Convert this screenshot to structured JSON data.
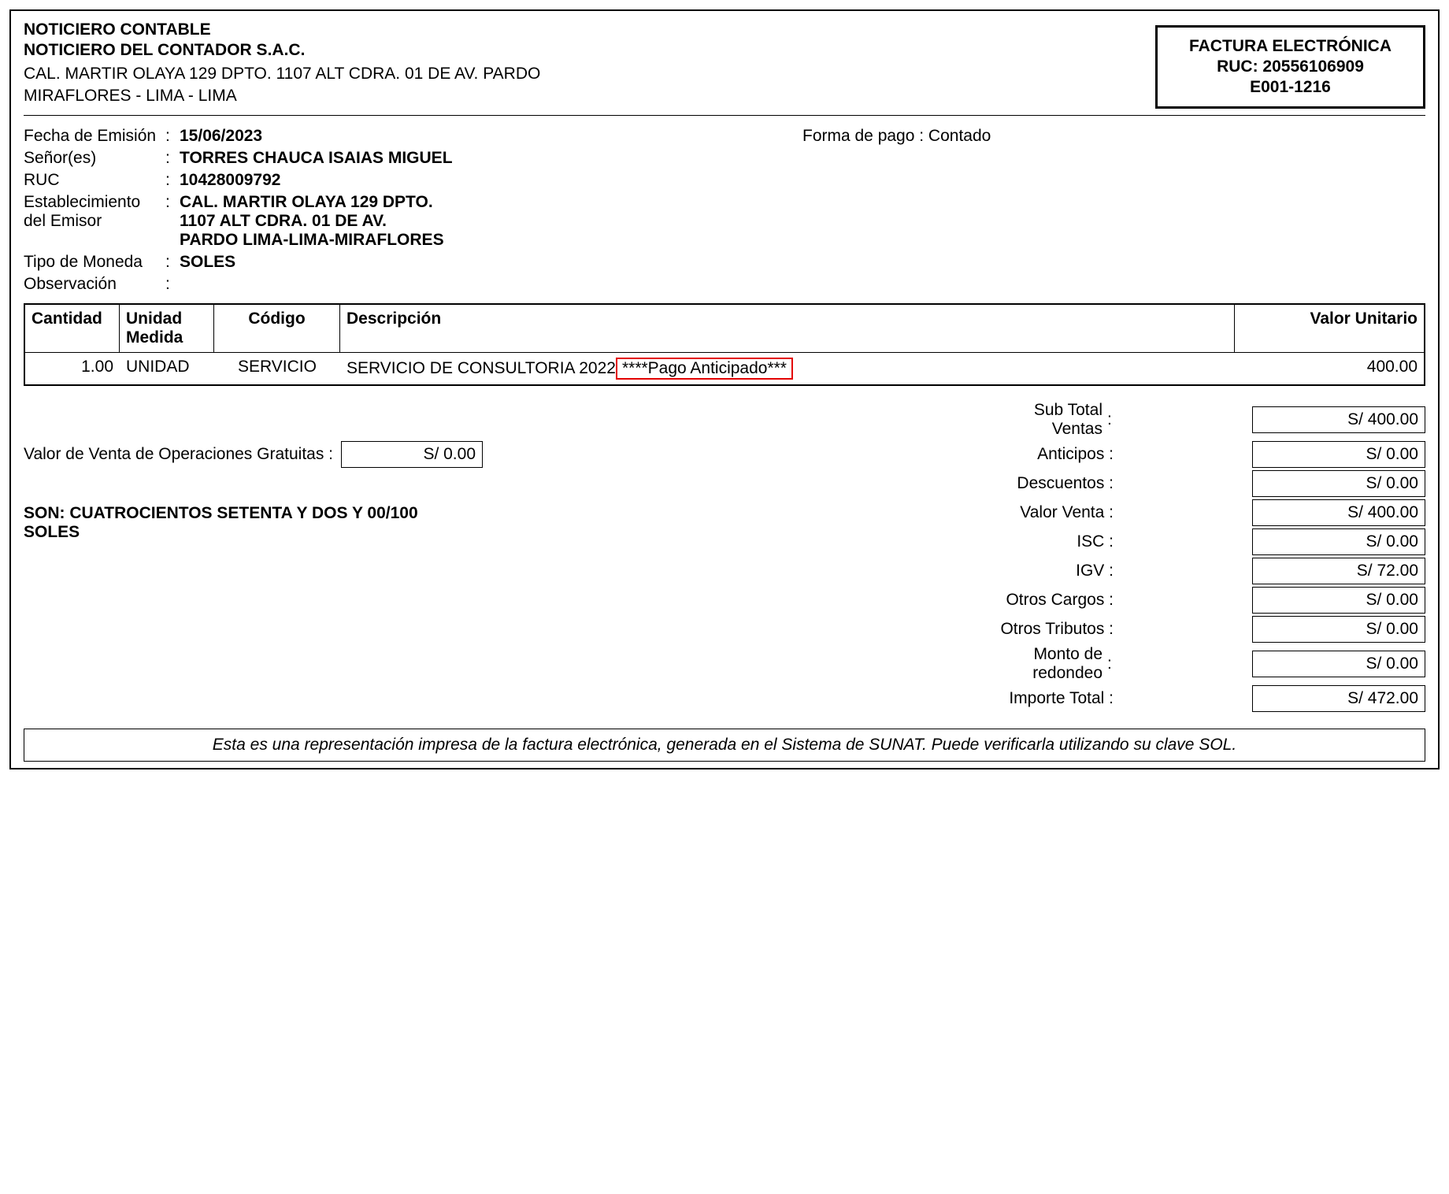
{
  "issuer": {
    "title": "NOTICIERO CONTABLE",
    "name": "NOTICIERO DEL CONTADOR S.A.C.",
    "address_line1": "CAL. MARTIR OLAYA 129 DPTO. 1107 ALT CDRA. 01 DE AV. PARDO",
    "address_line2": "MIRAFLORES - LIMA - LIMA"
  },
  "doc": {
    "type": "FACTURA ELECTRÓNICA",
    "ruc_label": "RUC: 20556106909",
    "serial": "E001-1216"
  },
  "info": {
    "fecha_label": "Fecha de Emisión",
    "fecha": "15/06/2023",
    "pago_label": "Forma de pago : Contado",
    "senor_label": "Señor(es)",
    "senor": "TORRES CHAUCA ISAIAS MIGUEL",
    "ruc_label": "RUC",
    "ruc": "10428009792",
    "estab_label": "Establecimiento del Emisor",
    "estab_l1": "CAL. MARTIR OLAYA 129 DPTO.",
    "estab_l2": "1107 ALT CDRA. 01 DE AV.",
    "estab_l3": "PARDO LIMA-LIMA-MIRAFLORES",
    "moneda_label": "Tipo de Moneda",
    "moneda": "SOLES",
    "obs_label": "Observación",
    "obs": ""
  },
  "columns": {
    "cantidad": "Cantidad",
    "unidad": "Unidad Medida",
    "codigo": "Código",
    "descripcion": "Descripción",
    "valor": "Valor Unitario"
  },
  "item": {
    "cantidad": "1.00",
    "unidad": "UNIDAD",
    "codigo": "SERVICIO",
    "desc_plain": "SERVICIO DE CONSULTORIA 2022",
    "desc_highlight": "****Pago Anticipado***",
    "valor": "400.00"
  },
  "gratuitas": {
    "label": "Valor de Venta de Operaciones Gratuitas :",
    "value": "S/ 0.00"
  },
  "amount_words": "SON: CUATROCIENTOS SETENTA Y DOS Y 00/100 SOLES",
  "totals": {
    "subtotal_l1": "Sub Total",
    "subtotal_l2": "Ventas",
    "subtotal_v": "S/ 400.00",
    "anticipos_l": "Anticipos :",
    "anticipos_v": "S/ 0.00",
    "descuentos_l": "Descuentos :",
    "descuentos_v": "S/ 0.00",
    "valorventa_l": "Valor Venta :",
    "valorventa_v": "S/ 400.00",
    "isc_l": "ISC :",
    "isc_v": "S/ 0.00",
    "igv_l": "IGV :",
    "igv_v": "S/ 72.00",
    "otroscargos_l": "Otros Cargos :",
    "otroscargos_v": "S/ 0.00",
    "otrostributos_l": "Otros Tributos :",
    "otrostributos_v": "S/ 0.00",
    "redondeo_l1": "Monto de",
    "redondeo_l2": "redondeo",
    "redondeo_v": "S/ 0.00",
    "importe_l": "Importe Total :",
    "importe_v": "S/ 472.00"
  },
  "footer": "Esta es una representación impresa de la factura electrónica, generada en el Sistema de SUNAT. Puede verificarla utilizando su clave SOL.",
  "colors": {
    "highlight_border": "#e30000",
    "border": "#000000",
    "bg": "#ffffff"
  }
}
